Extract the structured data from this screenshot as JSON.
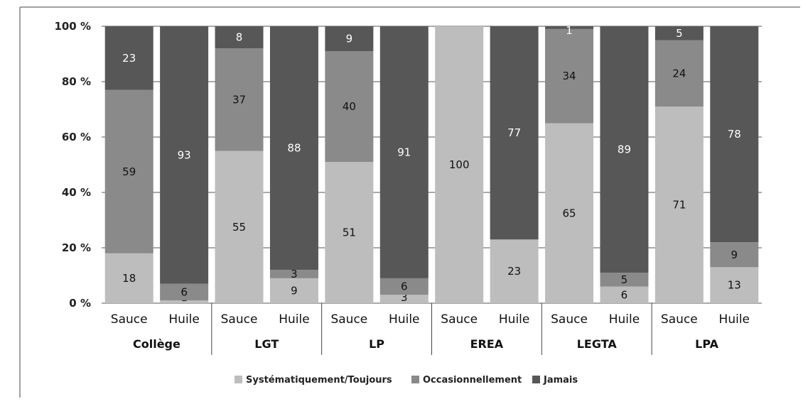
{
  "chart_data": {
    "type": "bar",
    "stacked": true,
    "normalized_percent": true,
    "title": "",
    "xlabel": "",
    "ylabel": "",
    "ylim": [
      0,
      100
    ],
    "y_ticks": [
      "0 %",
      "20 %",
      "40 %",
      "60 %",
      "80 %",
      "100 %"
    ],
    "y_tick_values": [
      0,
      20,
      40,
      60,
      80,
      100
    ],
    "grid": true,
    "legend_position": "bottom",
    "groups": [
      "Collège",
      "LGT",
      "LP",
      "EREA",
      "LEGTA",
      "LPA"
    ],
    "categories": [
      "Sauce",
      "Huile",
      "Sauce",
      "Huile",
      "Sauce",
      "Huile",
      "Sauce",
      "Huile",
      "Sauce",
      "Huile",
      "Sauce",
      "Huile"
    ],
    "series": [
      {
        "name": "Systématiquement/Toujours",
        "color": "#bdbdbd",
        "values": [
          18,
          1,
          55,
          9,
          51,
          3,
          100,
          23,
          65,
          6,
          71,
          13
        ],
        "labels": [
          "18",
          "1",
          "55",
          "9",
          "51",
          "3",
          "100",
          "23",
          "65",
          "6",
          "71",
          "13"
        ]
      },
      {
        "name": "Occasionnellement",
        "color": "#8a8a8a",
        "values": [
          59,
          6,
          37,
          3,
          40,
          6,
          0,
          0,
          34,
          5,
          24,
          9
        ],
        "labels": [
          "59",
          "6",
          "37",
          "3",
          "40",
          "6",
          "",
          "",
          "34",
          "5",
          "24",
          "9"
        ]
      },
      {
        "name": "Jamais",
        "color": "#575757",
        "values": [
          23,
          93,
          8,
          88,
          9,
          91,
          0,
          77,
          1,
          89,
          5,
          78
        ],
        "labels": [
          "23",
          "93",
          "8",
          "88",
          "9",
          "91",
          "",
          "77",
          "1",
          "89",
          "5",
          "78"
        ]
      }
    ]
  }
}
